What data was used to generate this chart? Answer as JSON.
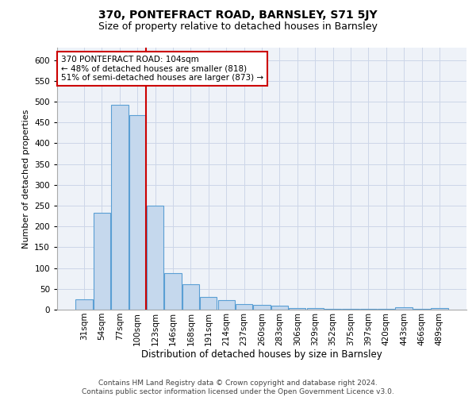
{
  "title": "370, PONTEFRACT ROAD, BARNSLEY, S71 5JY",
  "subtitle": "Size of property relative to detached houses in Barnsley",
  "xlabel": "Distribution of detached houses by size in Barnsley",
  "ylabel": "Number of detached properties",
  "categories": [
    "31sqm",
    "54sqm",
    "77sqm",
    "100sqm",
    "123sqm",
    "146sqm",
    "168sqm",
    "191sqm",
    "214sqm",
    "237sqm",
    "260sqm",
    "283sqm",
    "306sqm",
    "329sqm",
    "352sqm",
    "375sqm",
    "397sqm",
    "420sqm",
    "443sqm",
    "466sqm",
    "489sqm"
  ],
  "values": [
    25,
    233,
    493,
    468,
    250,
    88,
    62,
    31,
    22,
    13,
    11,
    9,
    4,
    3,
    2,
    2,
    1,
    1,
    6,
    1,
    4
  ],
  "bar_color": "#c5d8ed",
  "bar_edge_color": "#5a9fd4",
  "bar_linewidth": 0.8,
  "vline_x_index": 3,
  "vline_color": "#cc0000",
  "annotation_line1": "370 PONTEFRACT ROAD: 104sqm",
  "annotation_line2": "← 48% of detached houses are smaller (818)",
  "annotation_line3": "51% of semi-detached houses are larger (873) →",
  "annotation_box_color": "white",
  "annotation_box_edge": "#cc0000",
  "annotation_fontsize": 7.5,
  "title_fontsize": 10,
  "subtitle_fontsize": 9,
  "xlabel_fontsize": 8.5,
  "ylabel_fontsize": 8,
  "tick_fontsize": 7.5,
  "footer": "Contains HM Land Registry data © Crown copyright and database right 2024.\nContains public sector information licensed under the Open Government Licence v3.0.",
  "footer_fontsize": 6.5,
  "grid_color": "#ccd6e8",
  "background_color": "#eef2f8",
  "ylim": [
    0,
    630
  ],
  "yticks": [
    0,
    50,
    100,
    150,
    200,
    250,
    300,
    350,
    400,
    450,
    500,
    550,
    600
  ]
}
